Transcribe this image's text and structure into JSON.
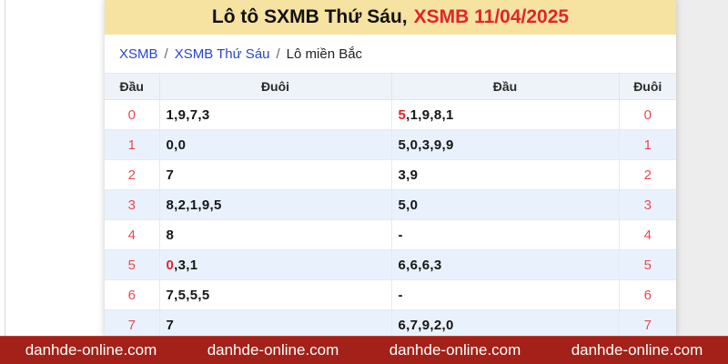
{
  "title": {
    "black": "Lô tô SXMB Thứ Sáu,",
    "red": "XSMB 11/04/2025"
  },
  "breadcrumb": {
    "separator": "/",
    "items": [
      {
        "label": "XSMB"
      },
      {
        "label": "XSMB Thứ Sáu"
      },
      {
        "label": "Lô miền Bắc"
      }
    ]
  },
  "table": {
    "headers": [
      "Đầu",
      "Đuôi",
      "Đầu",
      "Đuôi"
    ],
    "rows": [
      {
        "dau": "0",
        "left_red": "",
        "left": "1,9,7,3",
        "right_red": "5",
        "right": ",1,9,8,1",
        "duoi": "0"
      },
      {
        "dau": "1",
        "left_red": "",
        "left": "0,0",
        "right_red": "",
        "right": "5,0,3,9,9",
        "duoi": "1"
      },
      {
        "dau": "2",
        "left_red": "",
        "left": "7",
        "right_red": "",
        "right": "3,9",
        "duoi": "2"
      },
      {
        "dau": "3",
        "left_red": "",
        "left": "8,2,1,9,5",
        "right_red": "",
        "right": "5,0",
        "duoi": "3"
      },
      {
        "dau": "4",
        "left_red": "",
        "left": "8",
        "right_red": "",
        "right": "-",
        "duoi": "4"
      },
      {
        "dau": "5",
        "left_red": "0",
        "left": ",3,1",
        "right_red": "",
        "right": "6,6,6,3",
        "duoi": "5"
      },
      {
        "dau": "6",
        "left_red": "",
        "left": "7,5,5,5",
        "right_red": "",
        "right": "-",
        "duoi": "6"
      },
      {
        "dau": "7",
        "left_red": "",
        "left": "7",
        "right_red": "",
        "right": "6,7,9,2,0",
        "duoi": "7"
      }
    ]
  },
  "footer": {
    "items": [
      "danhde-online.com",
      "danhde-online.com",
      "danhde-online.com",
      "danhde-online.com"
    ]
  },
  "colors": {
    "banner_yellow": "#f6e3a1",
    "title_red": "#e3232a",
    "row_index_red": "#e8494d",
    "link_blue": "#2946cb",
    "row_alt_blue": "#e9f2fc",
    "footer_red": "#a32118"
  }
}
